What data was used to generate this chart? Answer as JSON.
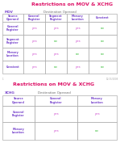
{
  "title": "Restrictions on MOV & XCHG",
  "title_color": "#dd1166",
  "subtitle": "Destination Operand",
  "label_mov": "MOV",
  "label_xchg": "XCHG",
  "header_color": "#7744cc",
  "yes_color": "#cc44cc",
  "no_color": "#33bb33",
  "grid_color": "#999999",
  "bg_color": "#ffffff",
  "source_operand": "Source\nOperand",
  "table1_col_headers": [
    "General\nRegister",
    "Segment\nRegister",
    "Memory\nLocation",
    "Constant"
  ],
  "table1_row_headers": [
    "General\nRegister",
    "Segment\nRegister",
    "Memory\nLocation",
    "Constant"
  ],
  "table1_data": [
    [
      "yes",
      "yes",
      "yes",
      "no"
    ],
    [
      "yes",
      "no",
      "yes",
      "no"
    ],
    [
      "yes",
      "yes",
      "no",
      "no"
    ],
    [
      "yes",
      "no",
      "yes",
      "no"
    ]
  ],
  "table2_col_headers": [
    "General\nRegister",
    "Memory\nLocation"
  ],
  "table2_row_headers": [
    "General\nRegister",
    "Memory\nLocation"
  ],
  "table2_data": [
    [
      "yes",
      "yes"
    ],
    [
      "yes",
      "no"
    ]
  ],
  "page_num": "1",
  "date": "12/15/2008",
  "fig_width": 1.49,
  "fig_height": 1.98,
  "dpi": 100
}
